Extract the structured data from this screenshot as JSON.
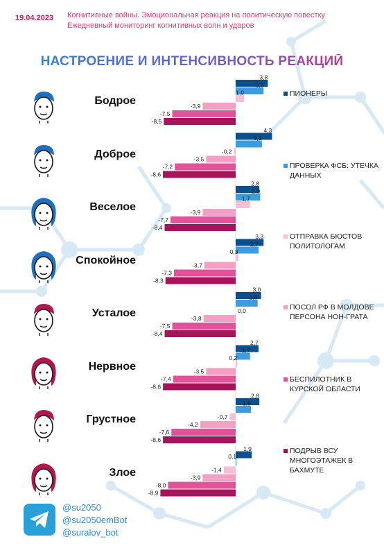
{
  "header": {
    "date": "19.04.2023",
    "line1": "Когнитивные войны. Эмоциональная реакция на политическую повестку",
    "line2": "Ежедневный мониторинг когнитивных волн и ударов"
  },
  "colors": {
    "series": [
      "#0d4f8c",
      "#3d9be0",
      "#f7bed8",
      "#f4a0c5",
      "#e0539a",
      "#a8135b"
    ]
  },
  "chart_data": {
    "type": "bar",
    "title": "НАСТРОЕНИЕ И ИНТЕНСИВНОСТЬ РЕАКЦИЙ",
    "categories": [
      "Бодрое",
      "Доброе",
      "Веселое",
      "Спокойное",
      "Усталое",
      "Нервное",
      "Грустное",
      "Злое"
    ],
    "series": [
      {
        "name": "Пионеры",
        "values": [
          3.8,
          4.3,
          2.8,
          3.3,
          3.0,
          2.7,
          2.8,
          1.9
        ]
      },
      {
        "name": "Проверка ФСБ: утечка данных",
        "values": [
          3.3,
          3.1,
          2.9,
          2.7,
          2.6,
          1.7,
          1.8,
          0.1
        ]
      },
      {
        "name": "Отправка бюстов политологам",
        "values": [
          1.0,
          -0.2,
          1.7,
          0.3,
          0.0,
          0.2,
          -0.7,
          -1.4
        ]
      },
      {
        "name": "Посол РФ в Молдове персона нон-грата",
        "values": [
          -3.9,
          -3.5,
          -3.9,
          -3.7,
          -3.8,
          -3.5,
          -4.2,
          -3.9
        ]
      },
      {
        "name": "Беспилотник в Курской области",
        "values": [
          -7.5,
          -7.2,
          -7.7,
          -7.3,
          -7.5,
          -7.4,
          -7.6,
          -8.0
        ]
      },
      {
        "name": "Подрыв ВСУ многоэтажек в Бахмуте",
        "values": [
          -8.5,
          -8.6,
          -8.4,
          -8.3,
          -8.4,
          -8.6,
          -8.6,
          -8.9
        ]
      }
    ],
    "orientation": "horizontal",
    "xlim": [
      -9,
      5
    ],
    "legend_position": "right"
  },
  "faces": [
    "blue-boy",
    "blue-boy",
    "blue-girl",
    "blue-girl",
    "red-boy",
    "red-girl",
    "red-boy",
    "red-girl"
  ],
  "footer": {
    "icon": "telegram-icon",
    "handles": [
      "@su2050",
      "@su2050emBot",
      "@suralov_bot"
    ]
  }
}
